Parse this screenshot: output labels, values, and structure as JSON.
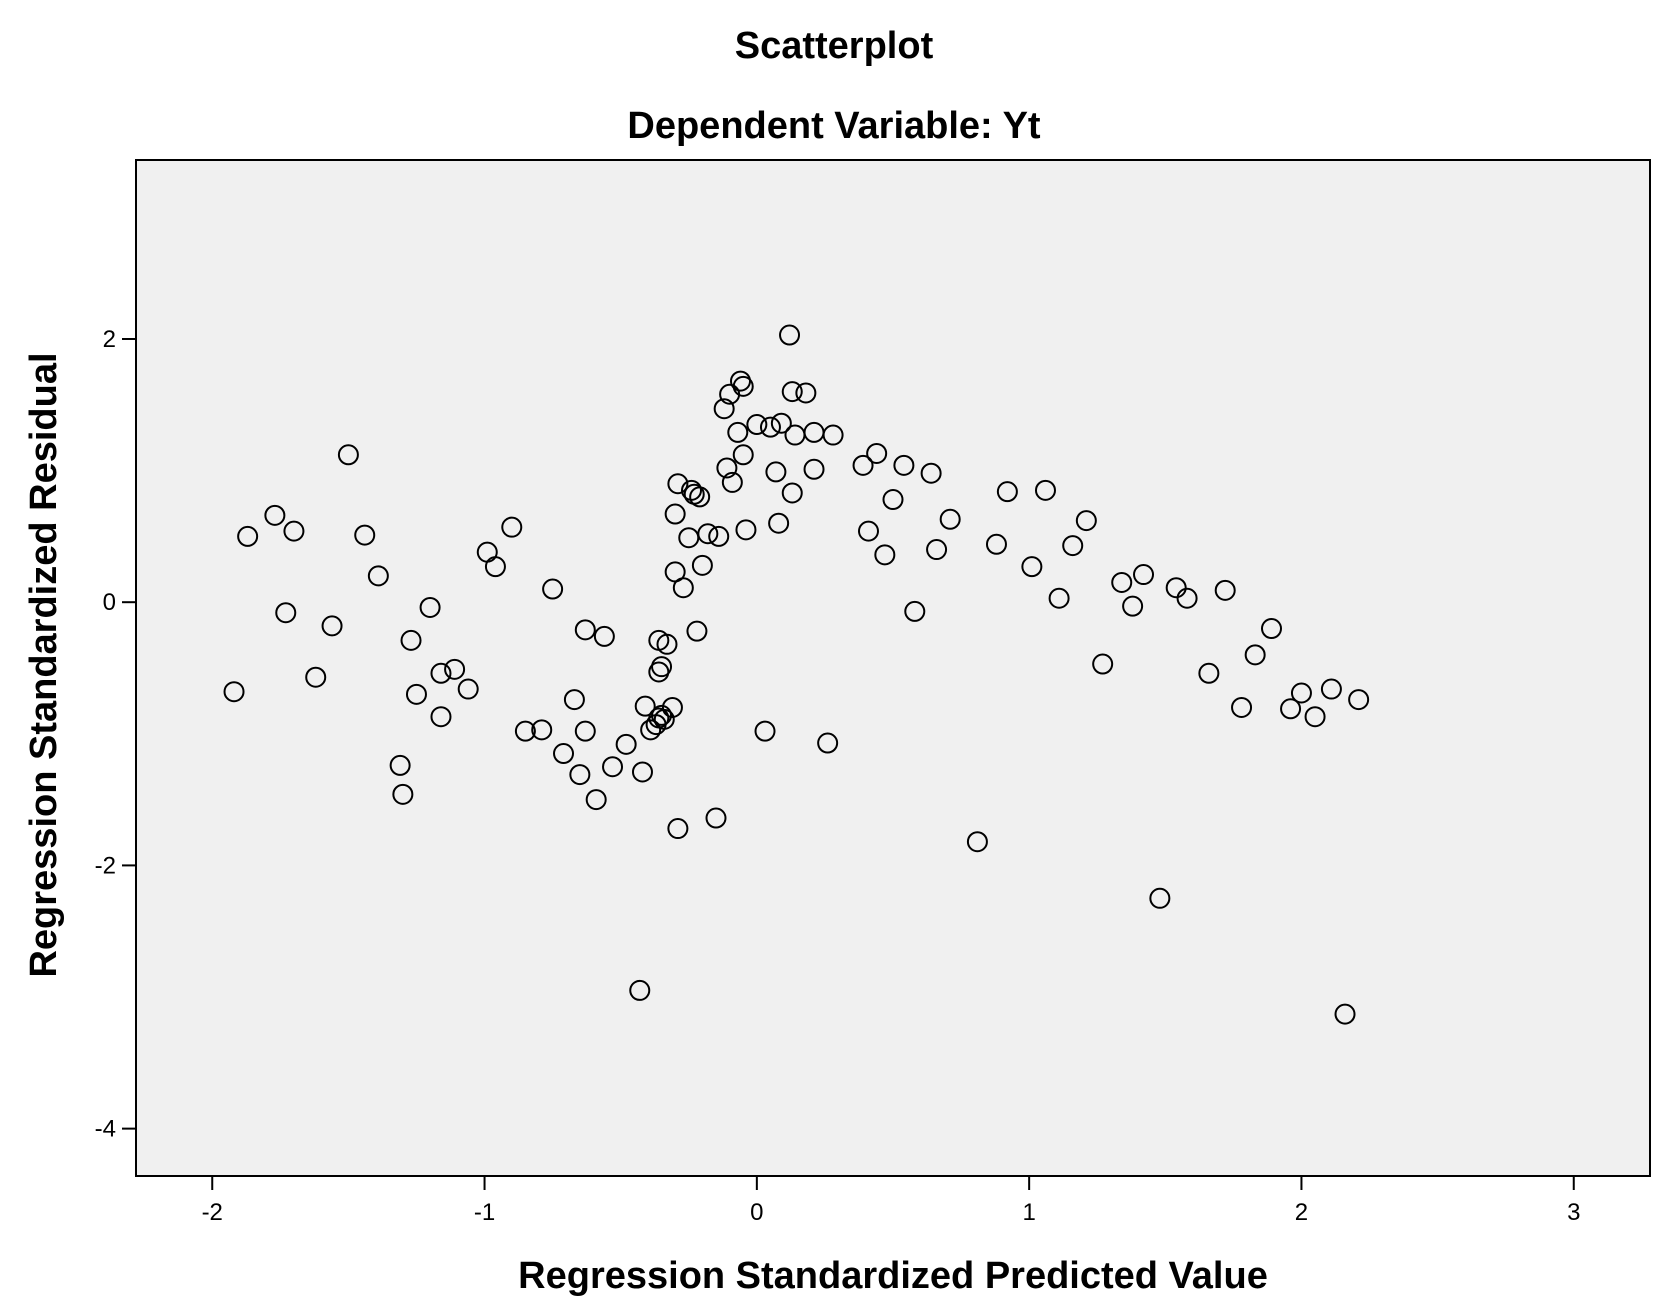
{
  "chart_data": {
    "type": "scatter",
    "title": "Scatterplot",
    "subtitle": "Dependent Variable: Yt",
    "xlabel": "Regression Standardized Predicted Value",
    "ylabel": "Regression Standardized Residual",
    "xlim": [
      -2.28,
      3.28
    ],
    "ylim": [
      -4.36,
      3.36
    ],
    "xticks": [
      -2,
      -1,
      0,
      1,
      2,
      3
    ],
    "xtick_labels": [
      "-2",
      "-1",
      "0",
      "1",
      "2",
      "3"
    ],
    "yticks": [
      -4,
      -2,
      0,
      2
    ],
    "ytick_labels": [
      "-4",
      "-2",
      "0",
      "2"
    ],
    "grid": false,
    "colors": {
      "plot_background": "#f0f0f0",
      "axis": "#000000",
      "marker": "#000000"
    },
    "marker": "hollow-circle",
    "points": [
      [
        -1.92,
        -0.68
      ],
      [
        -1.87,
        0.5
      ],
      [
        -1.77,
        0.66
      ],
      [
        -1.73,
        -0.08
      ],
      [
        -1.7,
        0.54
      ],
      [
        -1.62,
        -0.57
      ],
      [
        -1.56,
        -0.18
      ],
      [
        -1.5,
        1.12
      ],
      [
        -1.44,
        0.51
      ],
      [
        -1.39,
        0.2
      ],
      [
        -1.31,
        -1.24
      ],
      [
        -1.3,
        -1.46
      ],
      [
        -1.27,
        -0.29
      ],
      [
        -1.25,
        -0.7
      ],
      [
        -1.2,
        -0.04
      ],
      [
        -1.16,
        -0.54
      ],
      [
        -1.16,
        -0.87
      ],
      [
        -1.11,
        -0.51
      ],
      [
        -1.06,
        -0.66
      ],
      [
        -0.99,
        0.38
      ],
      [
        -0.96,
        0.27
      ],
      [
        -0.9,
        0.57
      ],
      [
        -0.85,
        -0.98
      ],
      [
        -0.79,
        -0.97
      ],
      [
        -0.75,
        0.1
      ],
      [
        -0.71,
        -1.15
      ],
      [
        -0.67,
        -0.74
      ],
      [
        -0.65,
        -1.31
      ],
      [
        -0.63,
        -0.21
      ],
      [
        -0.63,
        -0.98
      ],
      [
        -0.59,
        -1.5
      ],
      [
        -0.56,
        -0.26
      ],
      [
        -0.53,
        -1.25
      ],
      [
        -0.48,
        -1.08
      ],
      [
        -0.43,
        -2.95
      ],
      [
        -0.42,
        -1.29
      ],
      [
        -0.41,
        -0.79
      ],
      [
        -0.39,
        -0.97
      ],
      [
        -0.37,
        -0.93
      ],
      [
        -0.36,
        -0.29
      ],
      [
        -0.36,
        -0.53
      ],
      [
        -0.36,
        -0.88
      ],
      [
        -0.35,
        -0.49
      ],
      [
        -0.35,
        -0.86
      ],
      [
        -0.34,
        -0.89
      ],
      [
        -0.33,
        -0.32
      ],
      [
        -0.31,
        -0.8
      ],
      [
        -0.3,
        0.67
      ],
      [
        -0.3,
        0.23
      ],
      [
        -0.29,
        -1.72
      ],
      [
        -0.29,
        0.9
      ],
      [
        -0.27,
        0.11
      ],
      [
        -0.25,
        0.49
      ],
      [
        -0.24,
        0.85
      ],
      [
        -0.23,
        0.82
      ],
      [
        -0.22,
        -0.22
      ],
      [
        -0.21,
        0.8
      ],
      [
        -0.2,
        0.28
      ],
      [
        -0.18,
        0.52
      ],
      [
        -0.15,
        -1.64
      ],
      [
        -0.14,
        0.5
      ],
      [
        -0.12,
        1.47
      ],
      [
        -0.11,
        1.02
      ],
      [
        -0.1,
        1.58
      ],
      [
        -0.09,
        0.91
      ],
      [
        -0.07,
        1.29
      ],
      [
        -0.06,
        1.68
      ],
      [
        -0.05,
        1.64
      ],
      [
        -0.05,
        1.12
      ],
      [
        -0.04,
        0.55
      ],
      [
        0.0,
        1.35
      ],
      [
        0.03,
        -0.98
      ],
      [
        0.05,
        1.33
      ],
      [
        0.07,
        0.99
      ],
      [
        0.08,
        0.6
      ],
      [
        0.09,
        1.36
      ],
      [
        0.12,
        2.03
      ],
      [
        0.13,
        0.83
      ],
      [
        0.13,
        1.6
      ],
      [
        0.14,
        1.27
      ],
      [
        0.18,
        1.59
      ],
      [
        0.21,
        1.01
      ],
      [
        0.21,
        1.29
      ],
      [
        0.26,
        -1.07
      ],
      [
        0.28,
        1.27
      ],
      [
        0.39,
        1.04
      ],
      [
        0.41,
        0.54
      ],
      [
        0.44,
        1.13
      ],
      [
        0.47,
        0.36
      ],
      [
        0.5,
        0.78
      ],
      [
        0.54,
        1.04
      ],
      [
        0.58,
        -0.07
      ],
      [
        0.64,
        0.98
      ],
      [
        0.66,
        0.4
      ],
      [
        0.71,
        0.63
      ],
      [
        0.81,
        -1.82
      ],
      [
        0.88,
        0.44
      ],
      [
        0.92,
        0.84
      ],
      [
        1.01,
        0.27
      ],
      [
        1.06,
        0.85
      ],
      [
        1.11,
        0.03
      ],
      [
        1.16,
        0.43
      ],
      [
        1.21,
        0.62
      ],
      [
        1.27,
        -0.47
      ],
      [
        1.34,
        0.15
      ],
      [
        1.38,
        -0.03
      ],
      [
        1.42,
        0.21
      ],
      [
        1.48,
        -2.25
      ],
      [
        1.54,
        0.11
      ],
      [
        1.58,
        0.03
      ],
      [
        1.66,
        -0.54
      ],
      [
        1.72,
        0.09
      ],
      [
        1.78,
        -0.8
      ],
      [
        1.83,
        -0.4
      ],
      [
        1.89,
        -0.2
      ],
      [
        1.96,
        -0.81
      ],
      [
        2.0,
        -0.69
      ],
      [
        2.05,
        -0.87
      ],
      [
        2.11,
        -0.66
      ],
      [
        2.16,
        -3.13
      ],
      [
        2.21,
        -0.74
      ]
    ]
  }
}
